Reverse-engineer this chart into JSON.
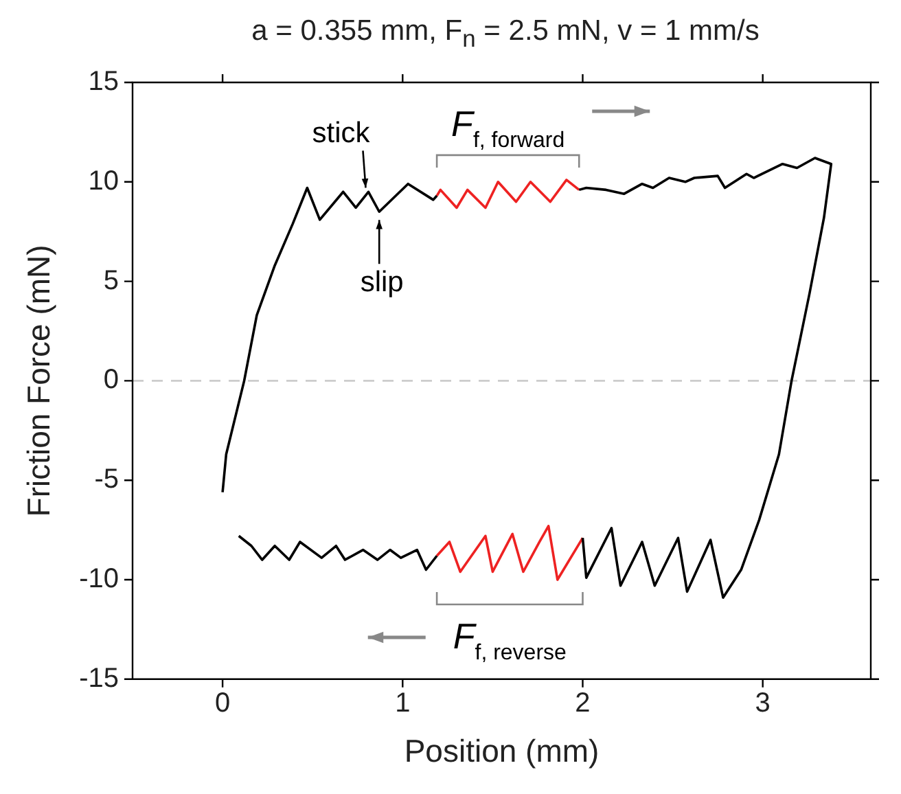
{
  "chart_data": {
    "type": "line",
    "title": "a = 0.355 mm, F$_{n}$ = 2.5 mN, v = 1 mm/s",
    "xlabel": "Position (mm)",
    "ylabel": "Friction Force (mN)",
    "xlim": [
      -0.5,
      3.6
    ],
    "xticks": [
      0,
      1,
      2,
      3
    ],
    "ylim": [
      -15,
      15
    ],
    "yticks": [
      -15,
      -10,
      -5,
      0,
      5,
      10,
      15
    ],
    "grid": false,
    "legend": false,
    "marker": "none",
    "line_style": "solid",
    "ref_lines": [
      {
        "axis": "y",
        "value": 0,
        "color": "#cccccc",
        "line_style": "dashed"
      }
    ],
    "series": [
      {
        "color": "#000000",
        "x": [
          0,
          0.02,
          0.12,
          0.19,
          0.29,
          0.39,
          0.47,
          0.54,
          0.67,
          0.74,
          0.81,
          0.87,
          1.03,
          1.17,
          1.19,
          1.2,
          1.98,
          2.02,
          2.13,
          2.23,
          2.33,
          2.39,
          2.48,
          2.57,
          2.62,
          2.75,
          2.79,
          2.91,
          2.95,
          3.11,
          3.19,
          3.29,
          3.38,
          3.34,
          3.26,
          3.16,
          3.09,
          2.98,
          2.88,
          2.78,
          2.71,
          2.58,
          2.53,
          2.4,
          2.33,
          2.21,
          2.16,
          2.02,
          2.0,
          1.9,
          1.19,
          1.13,
          1.08,
          0.99,
          0.93,
          0.86,
          0.78,
          0.68,
          0.63,
          0.55,
          0.43,
          0.37,
          0.29,
          0.22,
          0.16,
          0.09
        ],
        "values": [
          -5.6,
          -3.7,
          0,
          3.3,
          5.8,
          7.9,
          9.7,
          8.1,
          9.5,
          8.7,
          9.5,
          8.5,
          9.9,
          9.1,
          9.3,
          null,
          9.6,
          9.7,
          9.6,
          9.4,
          9.9,
          9.7,
          10.2,
          10.0,
          10.2,
          10.3,
          9.7,
          10.4,
          10.2,
          10.9,
          10.7,
          11.2,
          10.9,
          8.2,
          4.4,
          0,
          -3.7,
          -7.0,
          -9.5,
          -10.9,
          -8.0,
          -10.6,
          -7.9,
          -10.3,
          -8.1,
          -10.3,
          -7.4,
          -9.9,
          -7.9,
          null,
          -8.8,
          -9.5,
          -8.5,
          -8.9,
          -8.5,
          -9.0,
          -8.5,
          -9.0,
          -8.3,
          -8.9,
          -8.1,
          -9.0,
          -8.3,
          -9.0,
          -8.3,
          -7.8
        ]
      },
      {
        "color": "#ee2222",
        "x": [
          1.19,
          1.21,
          1.3,
          1.36,
          1.46,
          1.53,
          1.63,
          1.71,
          1.82,
          1.91,
          1.98
        ],
        "values": [
          9.3,
          9.6,
          8.7,
          9.6,
          8.7,
          10.0,
          9.0,
          10.0,
          9.0,
          10.1,
          9.6
        ]
      },
      {
        "color": "#ee2222",
        "x": [
          2.0,
          1.86,
          1.81,
          1.76,
          1.67,
          1.61,
          1.5,
          1.46,
          1.32,
          1.26,
          1.19
        ],
        "values": [
          -7.9,
          -10.0,
          -7.3,
          -8.1,
          -9.6,
          -7.7,
          -9.6,
          -7.8,
          -9.6,
          -8.1,
          -8.8
        ]
      }
    ],
    "annotations": [
      {
        "text": "stick",
        "x": 0.81,
        "y": 9.5
      },
      {
        "text": "slip",
        "x": 0.87,
        "y": 8.5
      },
      "F$_{f, forward}$",
      "F$_{f, reverse}$"
    ]
  }
}
